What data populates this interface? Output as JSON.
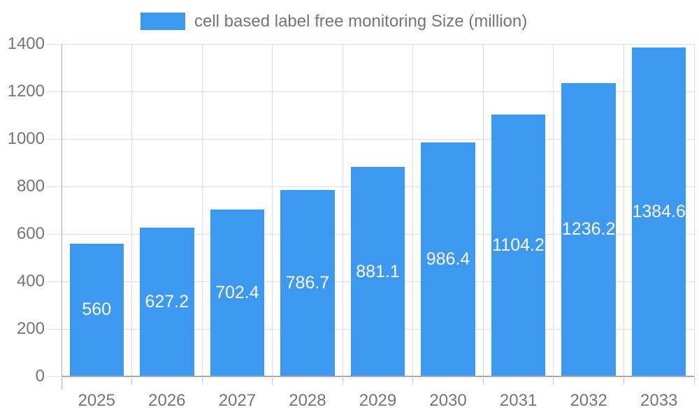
{
  "legend": {
    "label": "cell based label free monitoring Size (million)"
  },
  "chart_data": {
    "type": "bar",
    "title": "",
    "categories": [
      "2025",
      "2026",
      "2027",
      "2028",
      "2029",
      "2030",
      "2031",
      "2032",
      "2033"
    ],
    "values": [
      560,
      627.2,
      702.4,
      786.7,
      881.1,
      986.4,
      1104.2,
      1236.2,
      1384.6
    ],
    "value_labels": [
      "560",
      "627.2",
      "702.4",
      "786.7",
      "881.1",
      "986.4",
      "1104.2",
      "1236.2",
      "1384.6"
    ],
    "series_name": "cell based label free monitoring Size (million)",
    "xlabel": "",
    "ylabel": "",
    "ylim": [
      0,
      1400
    ],
    "yticks": [
      0,
      200,
      400,
      600,
      800,
      1000,
      1200,
      1400
    ],
    "grid": true,
    "legend_position": "top",
    "colors": {
      "bar": "#3D99F0",
      "value_label": "#FFFFFF",
      "axis_text": "#757575",
      "gridline": "#DDDDDD",
      "axis_line": "#ABABAB",
      "baseline": "#ABABAB",
      "tick": "#C9C9C9",
      "background": "#FFFFFF"
    }
  }
}
